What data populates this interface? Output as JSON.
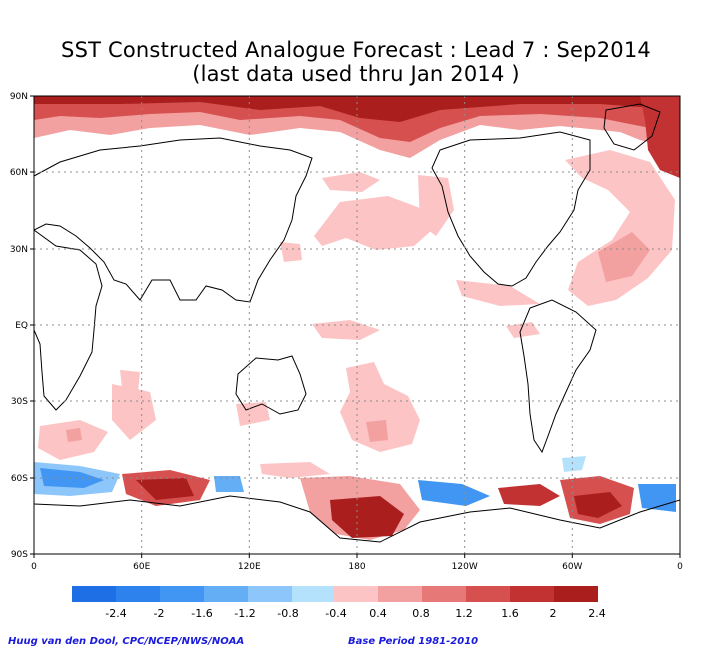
{
  "title": "SST Constructed Analogue Forecast : Lead 7 : Sep2014",
  "subtitle": "(last data used thru Jan 2014 )",
  "map": {
    "lat_ticks": [
      "90N",
      "60N",
      "30N",
      "EQ",
      "30S",
      "60S",
      "90S"
    ],
    "lon_ticks": [
      "0",
      "60E",
      "120E",
      "180",
      "120W",
      "60W",
      "0"
    ],
    "gridlines": true
  },
  "colorbar": {
    "negative_colors": [
      "#1e6ee6",
      "#2e82ee",
      "#4096f2",
      "#64aef6",
      "#8cc6fa",
      "#b4e2fc"
    ],
    "positive_colors": [
      "#fcc4c4",
      "#f2a0a0",
      "#e67878",
      "#d65050",
      "#c23232",
      "#aa1e1e"
    ],
    "labels": [
      "-2.4",
      "-2",
      "-1.6",
      "-1.2",
      "-0.8",
      "-0.4",
      "0.4",
      "0.8",
      "1.2",
      "1.6",
      "2",
      "2.4"
    ]
  },
  "credit": "Huug van den Dool, CPC/NCEP/NWS/NOAA",
  "base_period": "Base Period 1981-2010"
}
